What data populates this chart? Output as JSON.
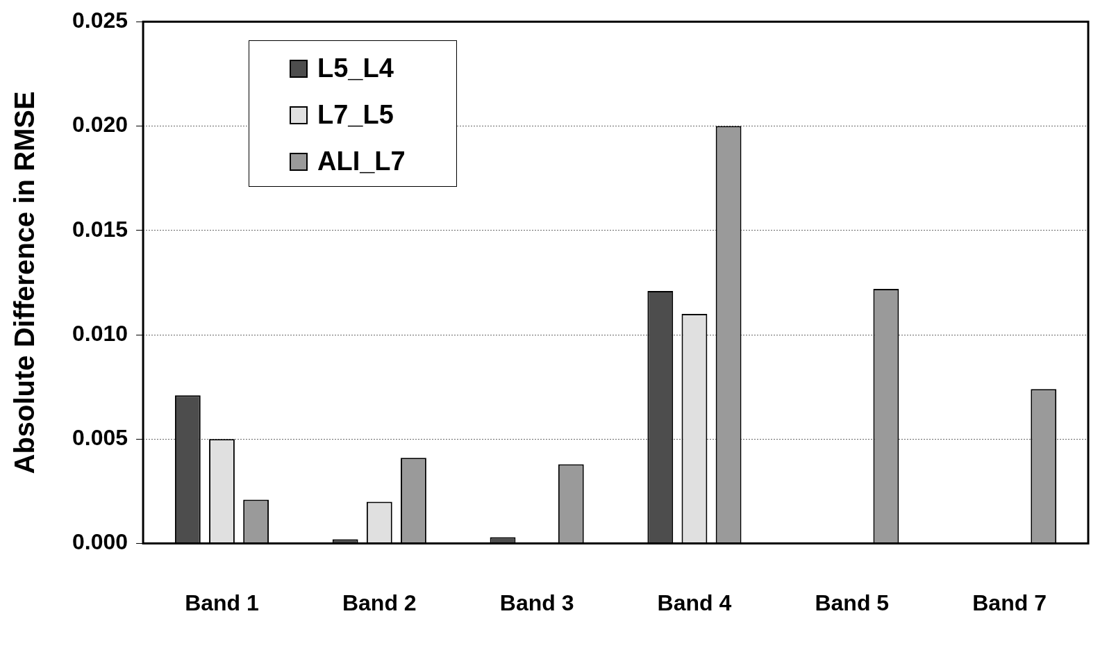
{
  "chart_data": {
    "type": "bar",
    "ylabel": "Absolute Difference in RMSE",
    "categories": [
      "Band 1",
      "Band 2",
      "Band 3",
      "Band 4",
      "Band 5",
      "Band 7"
    ],
    "series": [
      {
        "name": "L5_L4",
        "color": "#4d4d4d",
        "values": [
          0.0071,
          0.0002,
          0.0003,
          0.0121,
          null,
          null
        ]
      },
      {
        "name": "L7_L5",
        "color": "#e0e0e0",
        "values": [
          0.005,
          0.002,
          null,
          0.011,
          null,
          null
        ]
      },
      {
        "name": "ALI_L7",
        "color": "#9a9a9a",
        "values": [
          0.0021,
          0.0041,
          0.0038,
          0.02,
          0.0122,
          0.0074
        ]
      }
    ],
    "ylim": [
      0,
      0.025
    ],
    "yticks": [
      {
        "value": 0,
        "label": "0.000"
      },
      {
        "value": 0.005,
        "label": "0.005"
      },
      {
        "value": 0.01,
        "label": "0.010"
      },
      {
        "value": 0.015,
        "label": "0.015"
      },
      {
        "value": 0.02,
        "label": "0.020"
      },
      {
        "value": 0.025,
        "label": "0.025"
      }
    ],
    "grid": "y",
    "legend": "top left"
  }
}
